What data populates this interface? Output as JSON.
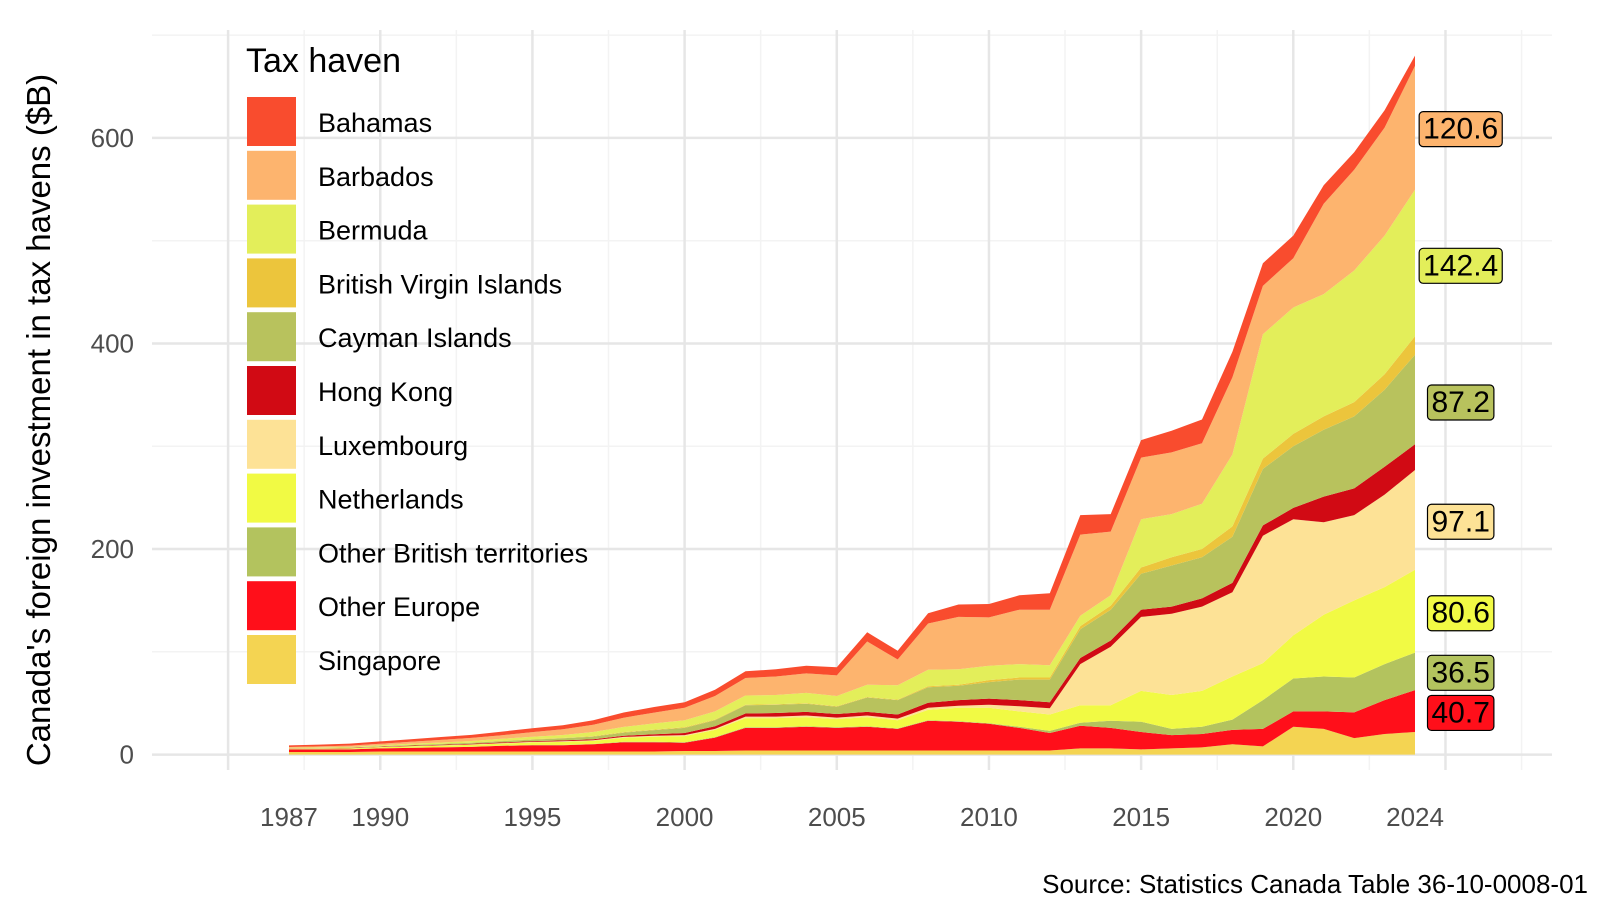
{
  "chart_data": {
    "type": "area",
    "stacked": true,
    "title": "",
    "xlabel": "",
    "ylabel": "Canada's foreign investment in tax havens ($B)",
    "source": "Source: Statistics Canada Table 36-10-0008-01",
    "legend_title": "Tax haven",
    "legend_position": "top-left inside plot",
    "grid": true,
    "xlim": [
      1982.5,
      2028.5
    ],
    "ylim": [
      -15,
      705
    ],
    "x_ticks": [
      1987,
      1990,
      1995,
      2000,
      2005,
      2010,
      2015,
      2020,
      2024
    ],
    "x_tick_labels": [
      "1987",
      "1990",
      "1995",
      "2000",
      "2005",
      "2010",
      "2015",
      "2020",
      "2024"
    ],
    "y_ticks": [
      0,
      200,
      400,
      600
    ],
    "y_tick_labels": [
      "0",
      "200",
      "400",
      "600"
    ],
    "x": [
      1987,
      1988,
      1989,
      1990,
      1991,
      1992,
      1993,
      1994,
      1995,
      1996,
      1997,
      1998,
      1999,
      2000,
      2001,
      2002,
      2003,
      2004,
      2005,
      2006,
      2007,
      2008,
      2009,
      2010,
      2011,
      2012,
      2013,
      2014,
      2015,
      2016,
      2017,
      2018,
      2019,
      2020,
      2021,
      2022,
      2023,
      2024
    ],
    "series_stack_order_bottom_to_top": [
      "Singapore",
      "Other Europe",
      "Other British territories",
      "Netherlands",
      "Luxembourg",
      "Hong Kong",
      "Cayman Islands",
      "British Virgin Islands",
      "Bermuda",
      "Barbados",
      "Bahamas"
    ],
    "series": [
      {
        "name": "Bahamas",
        "color": "#F94C2E",
        "values": [
          1.5,
          1.7,
          2,
          2.3,
          2.5,
          2.8,
          3,
          3.5,
          3.8,
          4,
          4.5,
          5,
          5.5,
          5.5,
          6,
          6.5,
          7,
          7.5,
          8,
          9,
          8.5,
          10,
          12,
          13,
          14,
          16,
          19,
          17,
          17,
          21,
          23,
          25,
          22,
          22,
          18,
          17,
          17,
          10
        ]
      },
      {
        "name": "Barbados",
        "color": "#FDB46E",
        "values": [
          0.8,
          1,
          1.2,
          1.5,
          2,
          2.5,
          3,
          3.5,
          4.5,
          5.5,
          7,
          9,
          10.5,
          12,
          15,
          17,
          18,
          19,
          20,
          42,
          25,
          45,
          51,
          47,
          53,
          54,
          79,
          62,
          60,
          60,
          59,
          75,
          47,
          48,
          88,
          98,
          105,
          120.6
        ]
      },
      {
        "name": "Bermuda",
        "color": "#E3EE5A",
        "values": [
          0.3,
          0.4,
          0.5,
          0.7,
          1,
          1.2,
          1.5,
          2,
          2.5,
          3,
          4,
          5,
          6,
          7,
          8,
          9,
          9,
          10,
          10,
          12,
          14,
          16,
          15,
          14,
          13,
          12,
          10,
          10,
          47,
          42,
          44,
          70,
          121,
          123,
          119,
          128,
          135,
          142.4
        ]
      },
      {
        "name": "British Virgin Islands",
        "color": "#ECC53C",
        "values": [
          0.1,
          0.1,
          0.1,
          0.1,
          0.2,
          0.2,
          0.2,
          0.3,
          0.3,
          0.3,
          0.5,
          0.5,
          0.5,
          0.5,
          0.5,
          0.5,
          0.5,
          0.5,
          0.5,
          0.5,
          0.5,
          1,
          1,
          2,
          2,
          2,
          3,
          4,
          6,
          8,
          8,
          10,
          10,
          12,
          13,
          14,
          15,
          18
        ]
      },
      {
        "name": "Cayman Islands",
        "color": "#B8C25D",
        "values": [
          0.2,
          0.3,
          0.4,
          0.5,
          0.6,
          0.8,
          1,
          1.2,
          1.5,
          2,
          2.5,
          3,
          4,
          5,
          6,
          8,
          8,
          8,
          7,
          14,
          14,
          15,
          14,
          16,
          20,
          22,
          28,
          30,
          35,
          40,
          40,
          45,
          55,
          60,
          65,
          70,
          75,
          87.2
        ]
      },
      {
        "name": "Hong Kong",
        "color": "#D10A14",
        "values": [
          0.2,
          0.2,
          0.3,
          0.3,
          0.4,
          0.5,
          0.6,
          0.7,
          0.8,
          0.9,
          1,
          1.2,
          1.5,
          2,
          2.5,
          3,
          3.5,
          3.5,
          3.5,
          3.5,
          4,
          5,
          5.5,
          6,
          6,
          6,
          6,
          6,
          7,
          7,
          8,
          9,
          10,
          11,
          25,
          26,
          27,
          25
        ]
      },
      {
        "name": "Luxembourg",
        "color": "#FDE296",
        "values": [
          0.2,
          0.2,
          0.3,
          0.3,
          0.3,
          0.4,
          0.4,
          0.5,
          0.5,
          0.6,
          0.7,
          0.8,
          0.9,
          1,
          1,
          1.5,
          1.5,
          1.5,
          1.5,
          1.5,
          1.5,
          2,
          2,
          3,
          5,
          6,
          40,
          57,
          72,
          79,
          82,
          82,
          124,
          113,
          90,
          83,
          90,
          97.1
        ]
      },
      {
        "name": "Netherlands",
        "color": "#F1FA44",
        "values": [
          0.5,
          0.7,
          0.8,
          1,
          1.3,
          1.5,
          1.8,
          2,
          2.5,
          3,
          3,
          4,
          5,
          6,
          7,
          9,
          9,
          9,
          8,
          9,
          8,
          10,
          13,
          15,
          15,
          16,
          17,
          15,
          30,
          33,
          35,
          42,
          36,
          42,
          60,
          75,
          75,
          80.6
        ]
      },
      {
        "name": "Other British territories",
        "color": "#B3C35E",
        "values": [
          0.1,
          0.1,
          0.1,
          0.1,
          0.2,
          0.2,
          0.2,
          0.2,
          0.3,
          0.3,
          0.3,
          0.4,
          0.4,
          0.5,
          0.5,
          0.5,
          0.5,
          0.5,
          0.5,
          0.5,
          0.5,
          0.5,
          0.5,
          0.5,
          1,
          2,
          3,
          7,
          10,
          6,
          7,
          10,
          28,
          32,
          34,
          34,
          35,
          36.5
        ]
      },
      {
        "name": "Other Europe",
        "color": "#FF0F1A",
        "values": [
          2.5,
          2.5,
          2.5,
          3,
          3.5,
          4,
          4.5,
          5.5,
          6,
          6,
          7,
          9,
          9,
          8,
          13,
          22,
          22,
          23,
          22,
          23,
          21,
          29,
          28,
          26,
          22,
          17,
          22,
          20,
          17,
          13,
          13,
          14,
          17,
          15,
          17,
          25,
          33,
          40.7
        ]
      },
      {
        "name": "Singapore",
        "color": "#F4D452",
        "values": [
          2.5,
          2.5,
          2.5,
          3,
          3,
          3,
          3,
          3,
          3,
          3,
          3,
          3,
          3,
          3.5,
          3.5,
          4,
          4,
          4,
          4,
          4,
          4,
          4,
          4,
          4,
          4,
          4,
          6,
          6,
          5,
          6,
          7,
          10,
          8,
          27,
          25,
          16,
          20,
          22
        ]
      }
    ],
    "end_labels": [
      {
        "series": "Barbados",
        "text": "120.6",
        "y": 610,
        "fill": "#FDB46E"
      },
      {
        "series": "Bermuda",
        "text": "142.4",
        "y": 477,
        "fill": "#E3EE5A"
      },
      {
        "series": "Cayman Islands",
        "text": "87.2",
        "y": 344,
        "fill": "#B8C25D"
      },
      {
        "series": "Luxembourg",
        "text": "97.1",
        "y": 228,
        "fill": "#FDE296"
      },
      {
        "series": "Netherlands",
        "text": "80.6",
        "y": 139,
        "fill": "#F1FA44"
      },
      {
        "series": "Other British territories",
        "text": "36.5",
        "y": 81,
        "fill": "#B3C35E"
      },
      {
        "series": "Other Europe",
        "text": "40.7",
        "y": 42,
        "fill": "#FF0F1A"
      }
    ]
  }
}
